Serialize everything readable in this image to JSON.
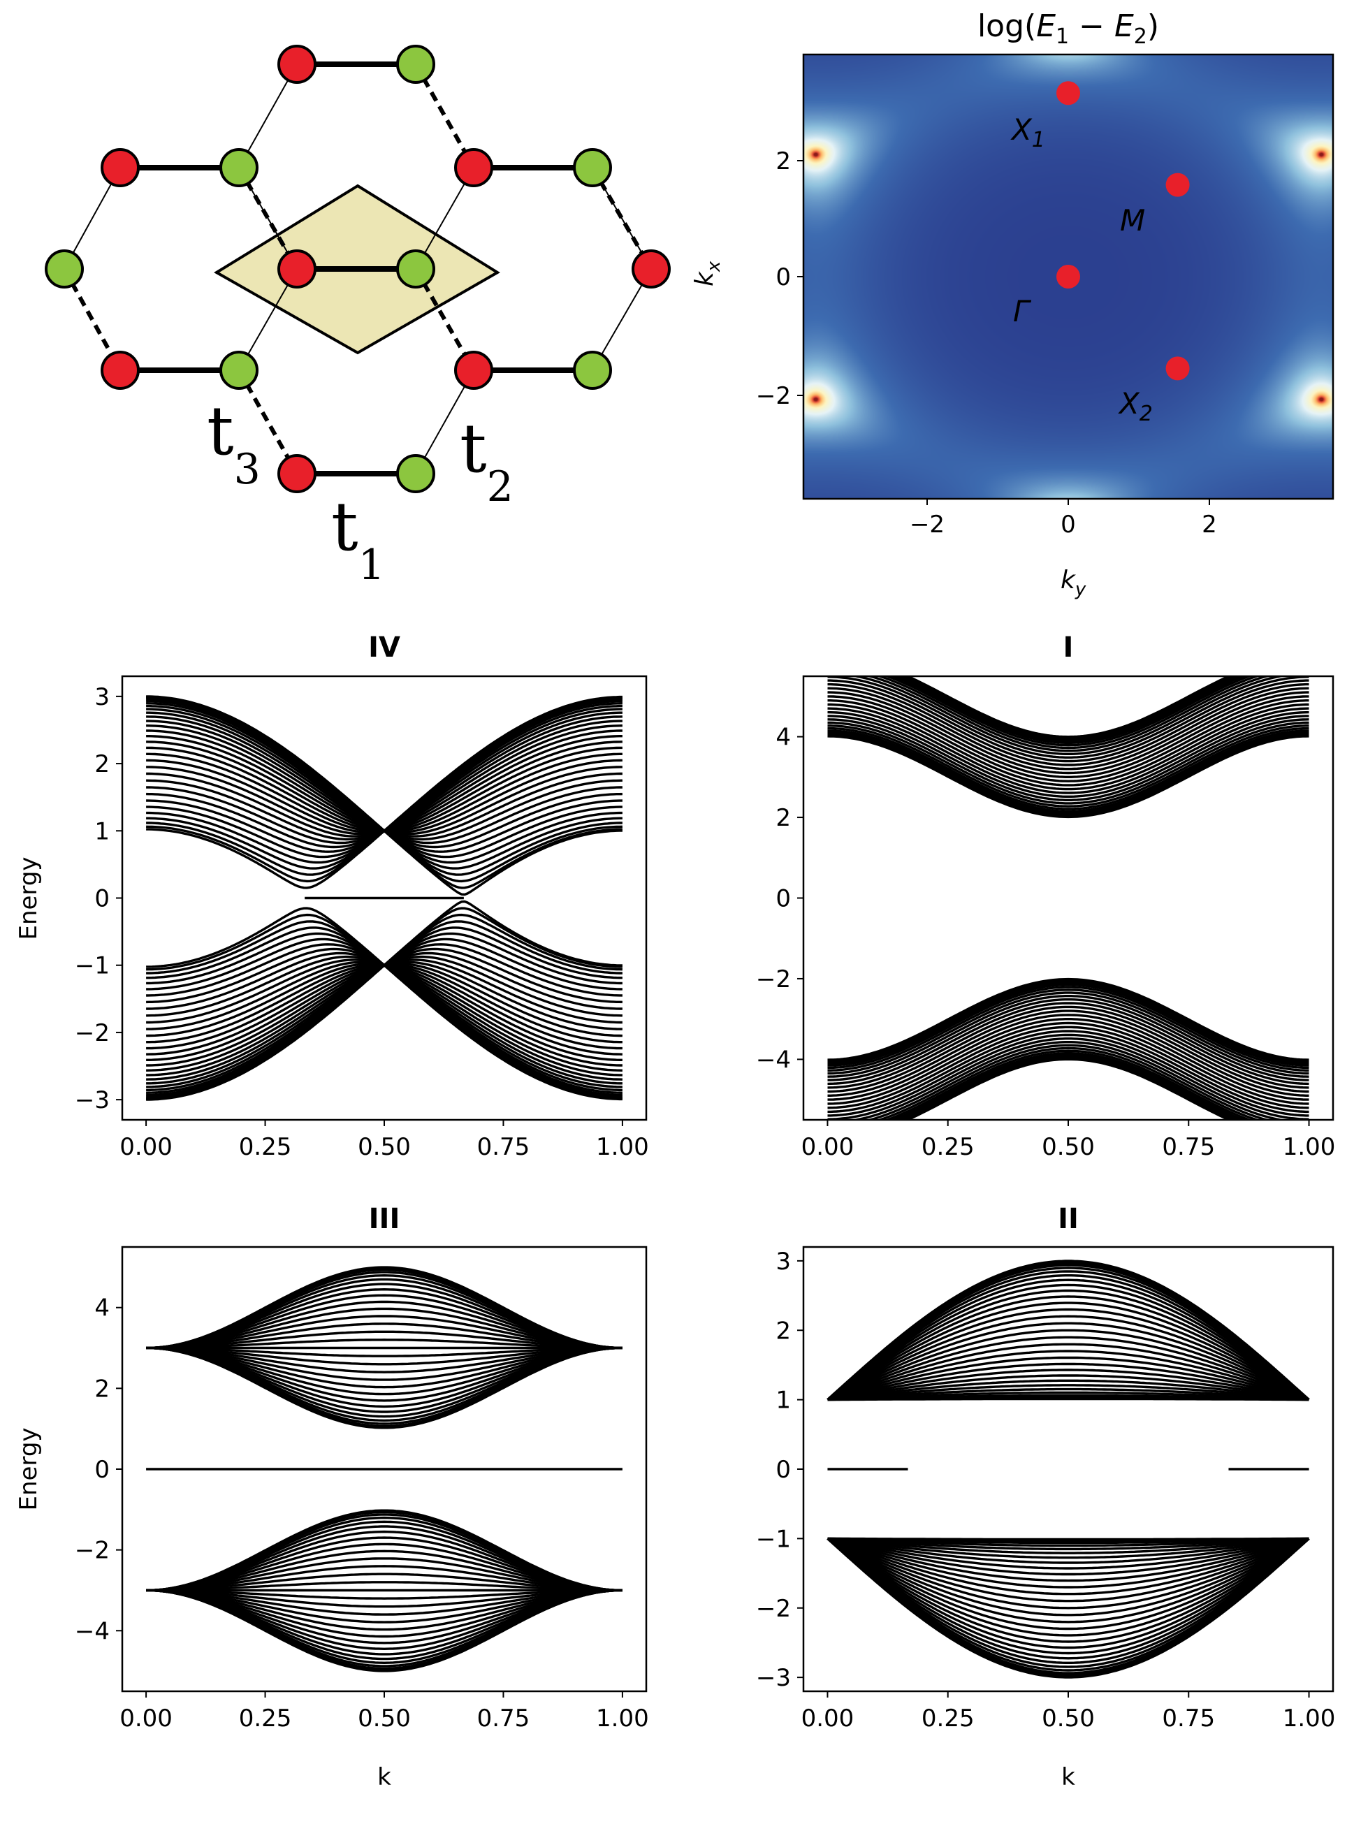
{
  "lattice": {
    "hopping_labels": [
      {
        "main": "t",
        "sub": "3"
      },
      {
        "main": "t",
        "sub": "2"
      },
      {
        "main": "t",
        "sub": "1"
      }
    ],
    "colors": {
      "site_a": "#e8202a",
      "site_b": "#8cc63f",
      "unit_cell": "#ece6b4"
    }
  },
  "heatmap": {
    "title": {
      "prefix": "log(",
      "e1": "E",
      "e1_sub": "1",
      "minus": " − ",
      "e2": "E",
      "e2_sub": "2",
      "suffix": ")"
    },
    "xlabel": {
      "main": "k",
      "sub": "y"
    },
    "ylabel": {
      "main": "k",
      "sub": "x"
    },
    "x_ticks": [
      "−2",
      "0",
      "2"
    ],
    "y_ticks": [
      "2",
      "0",
      "−2"
    ],
    "points": [
      {
        "name": "Γ",
        "kx": 0.0,
        "ky": 0.0,
        "label": "Γ"
      },
      {
        "name": "M",
        "kx": 1.57,
        "ky": 1.57,
        "label": "M"
      },
      {
        "name": "X1",
        "kx": 3.14,
        "ky": 0.0,
        "label": "X",
        "sub": "1"
      },
      {
        "name": "X2",
        "kx": -1.57,
        "ky": 1.57,
        "label": "X",
        "sub": "2"
      }
    ],
    "colormap": [
      "#2b3f8f",
      "#3d6bb0",
      "#8fc1dd",
      "#e6f3f7",
      "#fdf5c2",
      "#fdbb6a",
      "#e8553a",
      "#8b1a1a"
    ],
    "point_color": "#e8202a"
  },
  "panels": [
    {
      "title": "IV",
      "ylabel": "Energy",
      "xlabel": "",
      "y_ticks": [
        "3",
        "2",
        "1",
        "0",
        "−1",
        "−2",
        "−3"
      ],
      "x_ticks": [
        "0.00",
        "0.25",
        "0.50",
        "0.75",
        "1.00"
      ]
    },
    {
      "title": "I",
      "ylabel": "",
      "xlabel": "",
      "y_ticks": [
        "4",
        "2",
        "0",
        "−2",
        "−4"
      ],
      "x_ticks": [
        "0.00",
        "0.25",
        "0.50",
        "0.75",
        "1.00"
      ]
    },
    {
      "title": "III",
      "ylabel": "Energy",
      "xlabel": "k",
      "y_ticks": [
        "4",
        "2",
        "0",
        "−2",
        "−4"
      ],
      "x_ticks": [
        "0.00",
        "0.25",
        "0.50",
        "0.75",
        "1.00"
      ]
    },
    {
      "title": "II",
      "ylabel": "",
      "xlabel": "k",
      "y_ticks": [
        "3",
        "2",
        "1",
        "0",
        "−1",
        "−2",
        "−3"
      ],
      "x_ticks": [
        "0.00",
        "0.25",
        "0.50",
        "0.75",
        "1.00"
      ]
    }
  ],
  "chart_data": [
    {
      "type": "line",
      "title": "IV",
      "ylabel": "Energy",
      "xlabel": "",
      "xlim": [
        0,
        1
      ],
      "ylim": [
        -3.3,
        3.3
      ],
      "bands": {
        "upper_edges": [
          1,
          3
        ],
        "lower_edges": [
          -3,
          -1
        ],
        "crossing_k": 0.5,
        "crossing_energy": [
          1,
          -1
        ],
        "flat_band": {
          "energy": 0,
          "k_range": [
            0.333,
            0.667
          ]
        },
        "n_bands_per_side": 30
      }
    },
    {
      "type": "line",
      "title": "I",
      "ylabel": "",
      "xlabel": "",
      "xlim": [
        0,
        1
      ],
      "ylim": [
        -5.5,
        5.5
      ],
      "bands": {
        "upper_range_at_k0": [
          3,
          5
        ],
        "upper_range_at_k05": [
          1,
          3
        ],
        "lower_range_at_k0": [
          -5,
          -3
        ],
        "lower_range_at_k05": [
          -3,
          -1
        ],
        "n_bands_per_side": 30
      }
    },
    {
      "type": "line",
      "title": "III",
      "ylabel": "Energy",
      "xlabel": "k",
      "xlim": [
        0,
        1
      ],
      "ylim": [
        -5.5,
        5.5
      ],
      "bands": {
        "edge_energy_at_k0": [
          3,
          -3
        ],
        "upper_range_at_k05": [
          1,
          5
        ],
        "lower_range_at_k05": [
          -5,
          -1
        ],
        "flat_band": {
          "energy": 0,
          "k_range": [
            0,
            1
          ]
        },
        "n_bands_per_side": 30
      }
    },
    {
      "type": "line",
      "title": "II",
      "ylabel": "",
      "xlabel": "k",
      "xlim": [
        0,
        1
      ],
      "ylim": [
        -3.2,
        3.2
      ],
      "bands": {
        "edge_energy_at_k0": [
          1,
          -1
        ],
        "upper_range_at_k05": [
          1,
          3
        ],
        "lower_range_at_k05": [
          -3,
          -1
        ],
        "flat_band": {
          "energy": 0,
          "k_range": [
            0,
            0.167,
            0.833,
            1
          ]
        },
        "n_bands_per_side": 30
      }
    }
  ]
}
